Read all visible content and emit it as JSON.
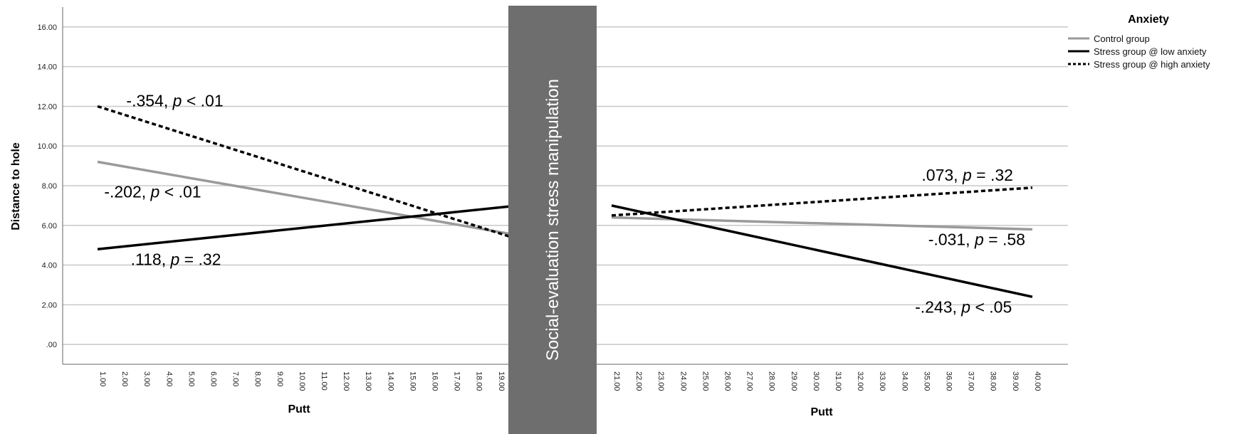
{
  "chart_data": {
    "type": "line",
    "ylabel": "Distance to hole",
    "xlabel": "Putt",
    "ylim": [
      -1,
      17
    ],
    "y_ticks": [
      ".00",
      "2.00",
      "4.00",
      "6.00",
      "8.00",
      "10.00",
      "12.00",
      "14.00",
      "16.00"
    ],
    "y_tick_values": [
      0,
      2,
      4,
      6,
      8,
      10,
      12,
      14,
      16
    ],
    "x_ticks_left": [
      "1.00",
      "2.00",
      "3.00",
      "4.00",
      "5.00",
      "6.00",
      "7.00",
      "8.00",
      "9.00",
      "10.00",
      "11.00",
      "12.00",
      "13.00",
      "14.00",
      "15.00",
      "16.00",
      "17.00",
      "18.00",
      "19.00"
    ],
    "x_ticks_right": [
      "21.00",
      "22.00",
      "23.00",
      "24.00",
      "25.00",
      "26.00",
      "27.00",
      "28.00",
      "29.00",
      "30.00",
      "31.00",
      "32.00",
      "33.00",
      "34.00",
      "35.00",
      "36.00",
      "37.00",
      "38.00",
      "39.00",
      "40.00"
    ],
    "grid": true,
    "legend": {
      "title": "Anxiety",
      "position": "top-right",
      "entries": [
        {
          "label": "Control group",
          "color": "#9a9a9a",
          "style": "solid"
        },
        {
          "label": "Stress group @ low anxiety",
          "color": "#000000",
          "style": "solid"
        },
        {
          "label": "Stress group @ high anxiety",
          "color": "#000000",
          "style": "dotted"
        }
      ]
    },
    "manipulation_label": "Social-evaluation stress manipulation",
    "series": [
      {
        "name": "Control group",
        "color": "#9a9a9a",
        "style": "solid",
        "segments": [
          {
            "x": [
              1,
              20
            ],
            "y": [
              9.2,
              5.5
            ]
          },
          {
            "x": [
              21,
              40
            ],
            "y": [
              6.4,
              5.8
            ]
          }
        ]
      },
      {
        "name": "Stress group @ low anxiety",
        "color": "#000000",
        "style": "solid",
        "segments": [
          {
            "x": [
              1,
              20
            ],
            "y": [
              4.8,
              7.0
            ]
          },
          {
            "x": [
              21,
              40
            ],
            "y": [
              7.0,
              2.4
            ]
          }
        ]
      },
      {
        "name": "Stress group @ high anxiety",
        "color": "#000000",
        "style": "dotted",
        "segments": [
          {
            "x": [
              1,
              20
            ],
            "y": [
              12.0,
              5.3
            ]
          },
          {
            "x": [
              21,
              40
            ],
            "y": [
              6.5,
              7.9
            ]
          }
        ]
      }
    ],
    "annotations": [
      {
        "pre": "-.354, ",
        "p": "p",
        "post": " < .01",
        "x": 2.3,
        "y": 12.0
      },
      {
        "pre": "-.202, ",
        "p": "p",
        "post": " < .01",
        "x": 1.3,
        "y": 7.4
      },
      {
        "pre": ".118, ",
        "p": "p",
        "post": " = .32",
        "x": 2.5,
        "y": 4.0
      },
      {
        "pre": ".073, ",
        "p": "p",
        "post": " = .32",
        "x": 35.0,
        "y": 8.25
      },
      {
        "pre": "-.031, ",
        "p": "p",
        "post": " = .58",
        "x": 35.3,
        "y": 5.0
      },
      {
        "pre": "-.243, ",
        "p": "p",
        "post": " < .05",
        "x": 34.7,
        "y": 1.6
      }
    ]
  }
}
